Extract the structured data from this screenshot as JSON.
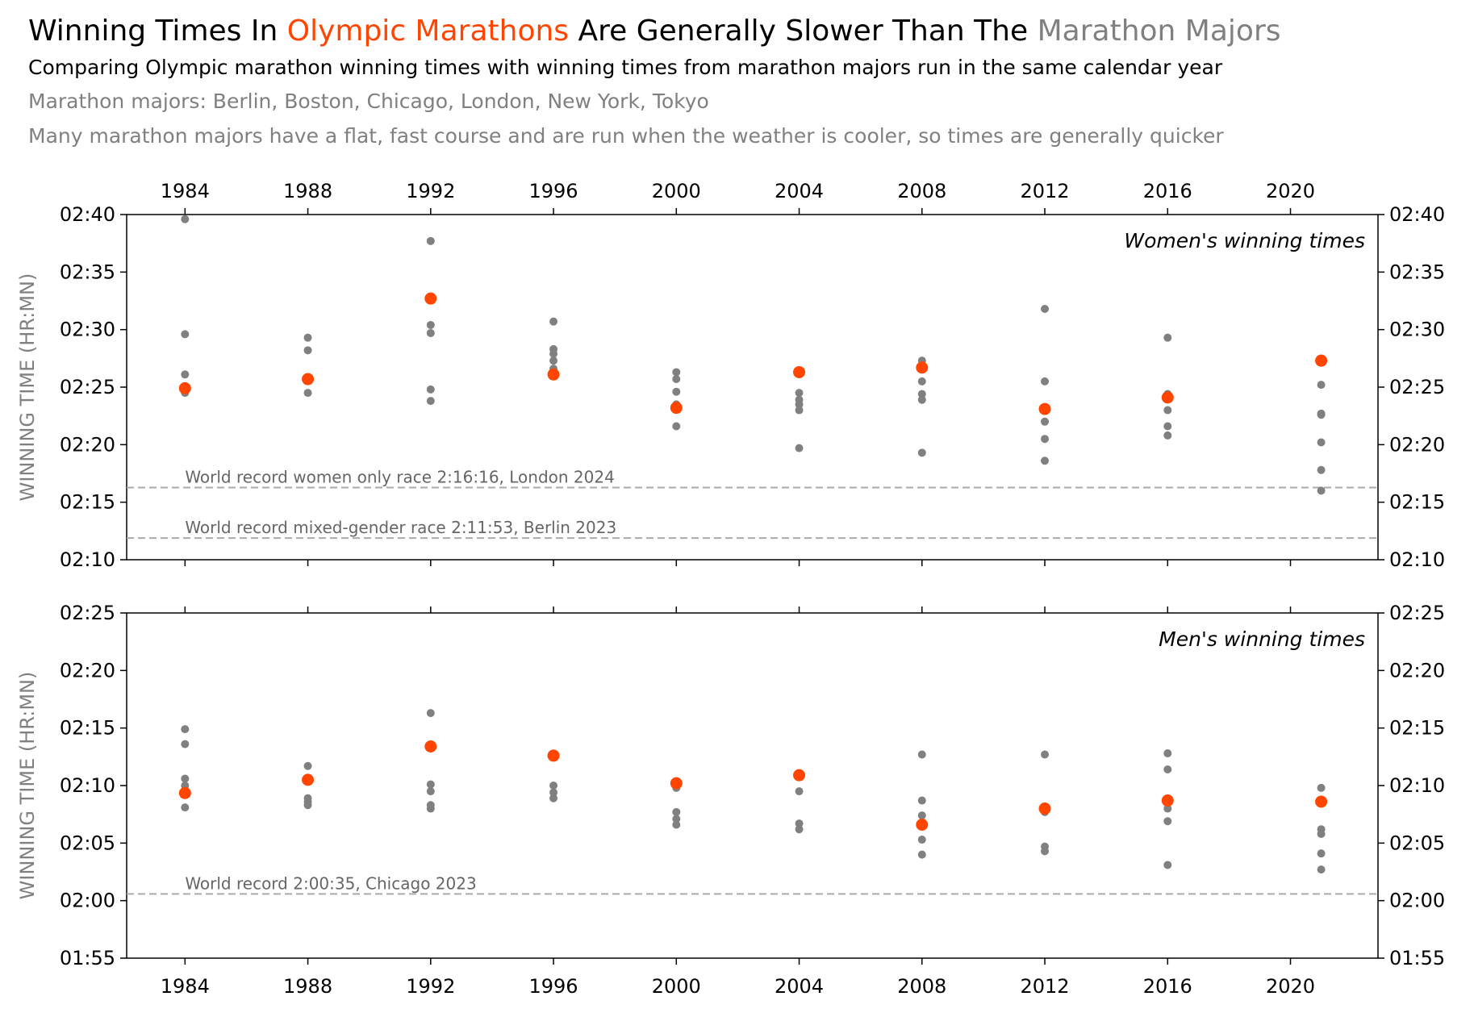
{
  "title": [
    {
      "text": "Winning Times In ",
      "color": "#000000"
    },
    {
      "text": "Olympic Marathons",
      "color": "#ff4500"
    },
    {
      "text": " Are Generally Slower Than The ",
      "color": "#000000"
    },
    {
      "text": "Marathon Majors",
      "color": "#808080"
    }
  ],
  "subtitle": "Comparing Olympic marathon winning times with winning times from marathon majors run in the same calendar year",
  "notes": [
    "Marathon majors: Berlin, Boston, Chicago, London, New York, Tokyo",
    "Many marathon majors have a flat, fast course and are run when the weather is cooler, so times are generally quicker"
  ],
  "chart_data": [
    {
      "type": "scatter",
      "annotation": "Women's winning times",
      "ylabel": "WINNING TIME (HR:MN)",
      "xtick_labels": "top",
      "xlim": [
        1982.1,
        2022.85
      ],
      "xticks": [
        1984,
        1988,
        1992,
        1996,
        2000,
        2004,
        2008,
        2012,
        2016,
        2020
      ],
      "ylim": [
        130,
        160
      ],
      "yticks": [
        {
          "value": 130,
          "label": "02:10"
        },
        {
          "value": 135,
          "label": "02:15"
        },
        {
          "value": 140,
          "label": "02:20"
        },
        {
          "value": 145,
          "label": "02:25"
        },
        {
          "value": 150,
          "label": "02:30"
        },
        {
          "value": 155,
          "label": "02:35"
        },
        {
          "value": 160,
          "label": "02:40"
        }
      ],
      "reference_lines": [
        {
          "value": 136.27,
          "label": "World record women only race 2:16:16, London 2024"
        },
        {
          "value": 131.88,
          "label": "World record mixed-gender race 2:11:53, Berlin 2023"
        }
      ],
      "series": [
        {
          "color": "#808080",
          "size": 5,
          "x": [
            1984,
            1984,
            1984,
            1984,
            1984,
            1988,
            1988,
            1988,
            1992,
            1992,
            1992,
            1992,
            1992,
            1996,
            1996,
            1996,
            1996,
            1996,
            2000,
            2000,
            2000,
            2000,
            2000,
            2004,
            2004,
            2004,
            2004,
            2004,
            2008,
            2008,
            2008,
            2008,
            2008,
            2012,
            2012,
            2012,
            2012,
            2012,
            2012,
            2016,
            2016,
            2016,
            2016,
            2016,
            2021,
            2021,
            2021,
            2021,
            2021,
            2021
          ],
          "values": [
            159.6,
            149.6,
            146.1,
            144.8,
            144.5,
            149.3,
            148.2,
            144.5,
            157.7,
            150.4,
            149.7,
            144.8,
            143.8,
            150.7,
            148.3,
            147.9,
            147.3,
            146.6,
            146.3,
            145.7,
            144.6,
            143.5,
            141.6,
            144.5,
            143.9,
            143.5,
            143.0,
            139.7,
            147.3,
            145.5,
            144.4,
            143.9,
            139.3,
            151.8,
            145.5,
            143.1,
            142.0,
            140.5,
            138.6,
            149.3,
            144.4,
            143.0,
            141.6,
            140.8,
            145.2,
            142.7,
            142.6,
            140.2,
            137.8,
            136.0
          ]
        },
        {
          "color": "#ff4500",
          "size": 7.5,
          "x": [
            1984,
            1988,
            1992,
            1996,
            2000,
            2004,
            2008,
            2012,
            2016,
            2021
          ],
          "values": [
            144.9,
            145.7,
            152.7,
            146.1,
            143.2,
            146.3,
            146.7,
            143.1,
            144.1,
            147.3
          ]
        }
      ]
    },
    {
      "type": "scatter",
      "annotation": "Men's winning times",
      "ylabel": "WINNING TIME (HR:MN)",
      "xtick_labels": "bottom",
      "xlim": [
        1982.1,
        2022.85
      ],
      "xticks": [
        1984,
        1988,
        1992,
        1996,
        2000,
        2004,
        2008,
        2012,
        2016,
        2020
      ],
      "ylim": [
        115,
        145
      ],
      "yticks": [
        {
          "value": 115,
          "label": "01:55"
        },
        {
          "value": 120,
          "label": "02:00"
        },
        {
          "value": 125,
          "label": "02:05"
        },
        {
          "value": 130,
          "label": "02:10"
        },
        {
          "value": 135,
          "label": "02:15"
        },
        {
          "value": 140,
          "label": "02:20"
        },
        {
          "value": 145,
          "label": "02:25"
        }
      ],
      "reference_lines": [
        {
          "value": 120.58,
          "label": "World record 2:00:35, Chicago 2023"
        }
      ],
      "series": [
        {
          "color": "#808080",
          "size": 5,
          "x": [
            1984,
            1984,
            1984,
            1984,
            1984,
            1988,
            1988,
            1988,
            1988,
            1992,
            1992,
            1992,
            1992,
            1992,
            1996,
            1996,
            1996,
            2000,
            2000,
            2000,
            2000,
            2004,
            2004,
            2004,
            2008,
            2008,
            2008,
            2008,
            2008,
            2012,
            2012,
            2012,
            2012,
            2016,
            2016,
            2016,
            2016,
            2016,
            2021,
            2021,
            2021,
            2021,
            2021
          ],
          "values": [
            134.9,
            133.6,
            130.6,
            130.0,
            128.1,
            131.7,
            128.9,
            128.6,
            128.3,
            136.3,
            130.1,
            129.5,
            128.3,
            128.0,
            130.0,
            129.4,
            128.9,
            129.8,
            127.7,
            127.1,
            126.6,
            129.5,
            126.7,
            126.2,
            132.7,
            128.7,
            127.4,
            125.3,
            124.0,
            132.7,
            127.7,
            124.7,
            124.3,
            132.8,
            131.4,
            128.0,
            126.9,
            123.1,
            129.8,
            126.2,
            125.8,
            124.1,
            122.7
          ]
        },
        {
          "color": "#ff4500",
          "size": 7.5,
          "x": [
            1984,
            1988,
            1992,
            1996,
            2000,
            2004,
            2008,
            2012,
            2016,
            2021
          ],
          "values": [
            129.35,
            130.5,
            133.4,
            132.6,
            130.2,
            130.9,
            126.6,
            128.0,
            128.7,
            128.6
          ]
        }
      ]
    }
  ]
}
